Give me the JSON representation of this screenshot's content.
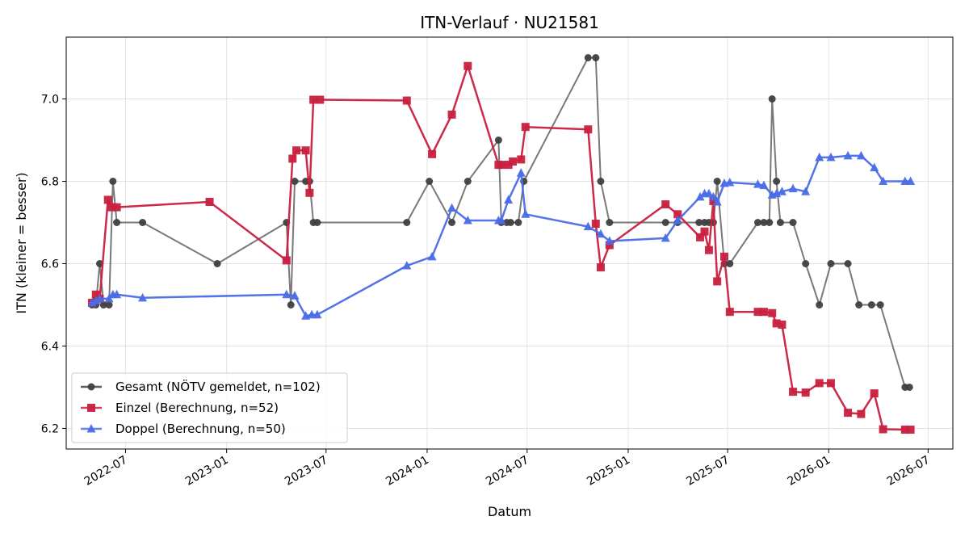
{
  "chart_data": {
    "type": "line",
    "title": "ITN-Verlauf · NU21581",
    "xlabel": "Datum",
    "ylabel": "ITN  (kleiner = besser)",
    "x_type": "date",
    "xlim": [
      "2022-03-15",
      "2026-08-15"
    ],
    "ylim": [
      6.15,
      7.15
    ],
    "x_ticks": [
      "2022-07-01",
      "2023-01-01",
      "2023-07-01",
      "2024-01-01",
      "2024-07-01",
      "2025-01-01",
      "2025-07-01",
      "2026-01-01",
      "2026-07-01"
    ],
    "x_tick_labels": [
      "2022-07",
      "2023-01",
      "2023-07",
      "2024-01",
      "2024-07",
      "2025-01",
      "2025-07",
      "2026-01",
      "2026-07"
    ],
    "y_ticks": [
      6.2,
      6.4,
      6.6,
      6.8,
      7.0
    ],
    "y_tick_labels": [
      "6.2",
      "6.4",
      "6.6",
      "6.8",
      "7.0"
    ],
    "grid": true,
    "legend_position": "lower-left",
    "series": [
      {
        "name": "Gesamt (NÖTV gemeldet, n=102)",
        "color": "#404040",
        "marker": "circle",
        "points": [
          [
            "2022-05-01",
            6.5
          ],
          [
            "2022-05-08",
            6.5
          ],
          [
            "2022-05-15",
            6.6
          ],
          [
            "2022-05-22",
            6.5
          ],
          [
            "2022-06-01",
            6.5
          ],
          [
            "2022-06-08",
            6.8
          ],
          [
            "2022-06-15",
            6.7
          ],
          [
            "2022-08-01",
            6.7
          ],
          [
            "2022-12-15",
            6.6
          ],
          [
            "2023-04-20",
            6.7
          ],
          [
            "2023-04-28",
            6.5
          ],
          [
            "2023-05-05",
            6.8
          ],
          [
            "2023-05-25",
            6.8
          ],
          [
            "2023-06-01",
            6.8
          ],
          [
            "2023-06-08",
            6.7
          ],
          [
            "2023-06-15",
            6.7
          ],
          [
            "2023-11-25",
            6.7
          ],
          [
            "2024-01-05",
            6.8
          ],
          [
            "2024-02-15",
            6.7
          ],
          [
            "2024-03-15",
            6.8
          ],
          [
            "2024-05-10",
            6.9
          ],
          [
            "2024-05-15",
            6.7
          ],
          [
            "2024-05-25",
            6.7
          ],
          [
            "2024-06-01",
            6.7
          ],
          [
            "2024-06-15",
            6.7
          ],
          [
            "2024-06-25",
            6.8
          ],
          [
            "2024-10-20",
            7.1
          ],
          [
            "2024-11-03",
            7.1
          ],
          [
            "2024-11-12",
            6.8
          ],
          [
            "2024-11-28",
            6.7
          ],
          [
            "2025-03-10",
            6.7
          ],
          [
            "2025-04-01",
            6.7
          ],
          [
            "2025-05-10",
            6.7
          ],
          [
            "2025-05-20",
            6.7
          ],
          [
            "2025-05-28",
            6.7
          ],
          [
            "2025-06-05",
            6.7
          ],
          [
            "2025-06-12",
            6.8
          ],
          [
            "2025-06-25",
            6.6
          ],
          [
            "2025-07-05",
            6.6
          ],
          [
            "2025-08-25",
            6.7
          ],
          [
            "2025-09-05",
            6.7
          ],
          [
            "2025-09-15",
            6.7
          ],
          [
            "2025-09-20",
            7.0
          ],
          [
            "2025-09-28",
            6.8
          ],
          [
            "2025-10-05",
            6.7
          ],
          [
            "2025-10-28",
            6.7
          ],
          [
            "2025-11-20",
            6.6
          ],
          [
            "2025-12-15",
            6.5
          ],
          [
            "2026-01-05",
            6.6
          ],
          [
            "2026-02-05",
            6.6
          ],
          [
            "2026-02-25",
            6.5
          ],
          [
            "2026-03-20",
            6.5
          ],
          [
            "2026-04-05",
            6.5
          ],
          [
            "2026-05-20",
            6.3
          ],
          [
            "2026-05-28",
            6.3
          ]
        ]
      },
      {
        "name": "Einzel (Berechnung, n=52)",
        "color": "#c8203f",
        "marker": "square",
        "points": [
          [
            "2022-05-01",
            6.505
          ],
          [
            "2022-05-08",
            6.525
          ],
          [
            "2022-05-15",
            6.515
          ],
          [
            "2022-05-30",
            6.755
          ],
          [
            "2022-06-05",
            6.737
          ],
          [
            "2022-06-15",
            6.737
          ],
          [
            "2022-12-01",
            6.75
          ],
          [
            "2023-04-20",
            6.608
          ],
          [
            "2023-05-01",
            6.855
          ],
          [
            "2023-05-08",
            6.875
          ],
          [
            "2023-05-25",
            6.875
          ],
          [
            "2023-06-01",
            6.772
          ],
          [
            "2023-06-08",
            6.998
          ],
          [
            "2023-06-20",
            6.998
          ],
          [
            "2023-11-25",
            6.996
          ],
          [
            "2024-01-10",
            6.866
          ],
          [
            "2024-02-15",
            6.962
          ],
          [
            "2024-03-15",
            7.08
          ],
          [
            "2024-05-10",
            6.84
          ],
          [
            "2024-05-15",
            6.84
          ],
          [
            "2024-05-28",
            6.84
          ],
          [
            "2024-06-05",
            6.848
          ],
          [
            "2024-06-20",
            6.853
          ],
          [
            "2024-06-28",
            6.932
          ],
          [
            "2024-10-20",
            6.926
          ],
          [
            "2024-11-03",
            6.697
          ],
          [
            "2024-11-12",
            6.591
          ],
          [
            "2024-11-28",
            6.645
          ],
          [
            "2025-03-10",
            6.744
          ],
          [
            "2025-04-01",
            6.72
          ],
          [
            "2025-05-12",
            6.664
          ],
          [
            "2025-05-20",
            6.678
          ],
          [
            "2025-05-28",
            6.633
          ],
          [
            "2025-06-05",
            6.752
          ],
          [
            "2025-06-12",
            6.557
          ],
          [
            "2025-06-25",
            6.617
          ],
          [
            "2025-07-05",
            6.483
          ],
          [
            "2025-08-25",
            6.483
          ],
          [
            "2025-09-05",
            6.483
          ],
          [
            "2025-09-20",
            6.48
          ],
          [
            "2025-09-28",
            6.455
          ],
          [
            "2025-10-08",
            6.452
          ],
          [
            "2025-10-28",
            6.289
          ],
          [
            "2025-11-20",
            6.287
          ],
          [
            "2025-12-15",
            6.31
          ],
          [
            "2026-01-05",
            6.31
          ],
          [
            "2026-02-05",
            6.238
          ],
          [
            "2026-03-01",
            6.235
          ],
          [
            "2026-03-25",
            6.285
          ],
          [
            "2026-04-10",
            6.198
          ],
          [
            "2026-05-20",
            6.197
          ],
          [
            "2026-05-30",
            6.197
          ]
        ]
      },
      {
        "name": "Doppel (Berechnung, n=50)",
        "color": "#4a6be8",
        "marker": "triangle",
        "points": [
          [
            "2022-05-01",
            6.505
          ],
          [
            "2022-05-08",
            6.51
          ],
          [
            "2022-05-15",
            6.515
          ],
          [
            "2022-06-01",
            6.515
          ],
          [
            "2022-06-08",
            6.525
          ],
          [
            "2022-06-15",
            6.525
          ],
          [
            "2022-08-01",
            6.517
          ],
          [
            "2023-04-20",
            6.525
          ],
          [
            "2023-05-05",
            6.522
          ],
          [
            "2023-05-25",
            6.473
          ],
          [
            "2023-06-05",
            6.476
          ],
          [
            "2023-06-15",
            6.476
          ],
          [
            "2023-11-25",
            6.595
          ],
          [
            "2024-01-10",
            6.617
          ],
          [
            "2024-02-15",
            6.735
          ],
          [
            "2024-03-15",
            6.705
          ],
          [
            "2024-05-10",
            6.705
          ],
          [
            "2024-05-15",
            6.705
          ],
          [
            "2024-05-28",
            6.755
          ],
          [
            "2024-06-20",
            6.82
          ],
          [
            "2024-06-28",
            6.72
          ],
          [
            "2024-10-20",
            6.69
          ],
          [
            "2024-11-12",
            6.672
          ],
          [
            "2024-11-28",
            6.655
          ],
          [
            "2025-03-10",
            6.662
          ],
          [
            "2025-04-01",
            6.705
          ],
          [
            "2025-05-12",
            6.762
          ],
          [
            "2025-05-20",
            6.77
          ],
          [
            "2025-05-28",
            6.77
          ],
          [
            "2025-06-05",
            6.762
          ],
          [
            "2025-06-12",
            6.75
          ],
          [
            "2025-06-25",
            6.795
          ],
          [
            "2025-07-05",
            6.797
          ],
          [
            "2025-08-25",
            6.793
          ],
          [
            "2025-09-05",
            6.79
          ],
          [
            "2025-09-20",
            6.767
          ],
          [
            "2025-09-28",
            6.77
          ],
          [
            "2025-10-08",
            6.775
          ],
          [
            "2025-10-28",
            6.782
          ],
          [
            "2025-11-20",
            6.775
          ],
          [
            "2025-12-15",
            6.858
          ],
          [
            "2026-01-05",
            6.858
          ],
          [
            "2026-02-05",
            6.862
          ],
          [
            "2026-03-01",
            6.862
          ],
          [
            "2026-03-25",
            6.833
          ],
          [
            "2026-04-10",
            6.8
          ],
          [
            "2026-05-20",
            6.8
          ],
          [
            "2026-05-30",
            6.8
          ]
        ]
      }
    ]
  }
}
